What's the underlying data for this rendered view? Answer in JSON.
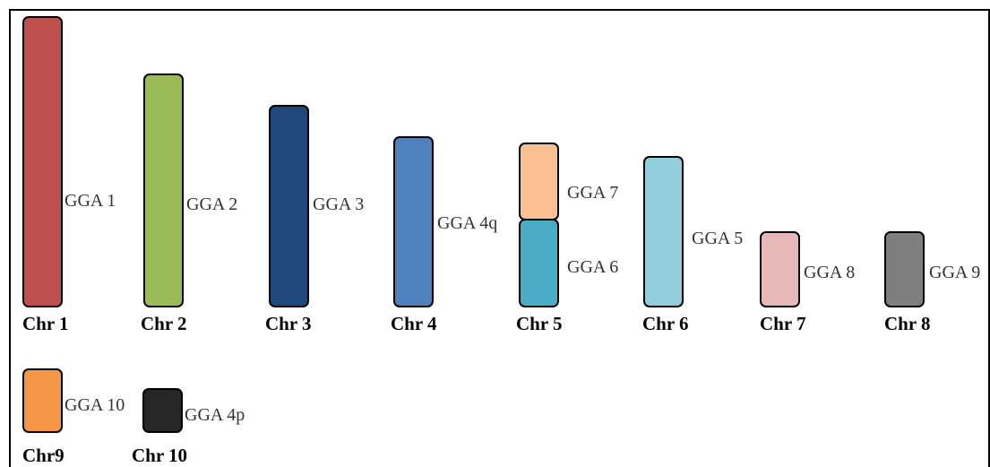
{
  "chromosomes": [
    {
      "label": "Chr 1",
      "segments": [
        {
          "label": "GGA 1",
          "color": "#c0504d"
        }
      ]
    },
    {
      "label": "Chr 2",
      "segments": [
        {
          "label": "GGA 2",
          "color": "#9bbb59"
        }
      ]
    },
    {
      "label": "Chr 3",
      "segments": [
        {
          "label": "GGA 3",
          "color": "#1f497d"
        }
      ]
    },
    {
      "label": "Chr 4",
      "segments": [
        {
          "label": "GGA 4q",
          "color": "#4f81bd"
        }
      ]
    },
    {
      "label": "Chr 5",
      "segments": [
        {
          "label": "GGA 7",
          "color": "#fac090"
        },
        {
          "label": "GGA 6",
          "color": "#4bacc6"
        }
      ]
    },
    {
      "label": "Chr 6",
      "segments": [
        {
          "label": "GGA 5",
          "color": "#92cddc"
        }
      ]
    },
    {
      "label": "Chr 7",
      "segments": [
        {
          "label": "GGA 8",
          "color": "#e6b9b8"
        }
      ]
    },
    {
      "label": "Chr 8",
      "segments": [
        {
          "label": "GGA 9",
          "color": "#7f7f7f"
        }
      ]
    },
    {
      "label": "Chr9",
      "segments": [
        {
          "label": "GGA 10",
          "color": "#f79646"
        }
      ]
    },
    {
      "label": "Chr 10",
      "segments": [
        {
          "label": "GGA 4p",
          "color": "#262626"
        }
      ]
    }
  ]
}
